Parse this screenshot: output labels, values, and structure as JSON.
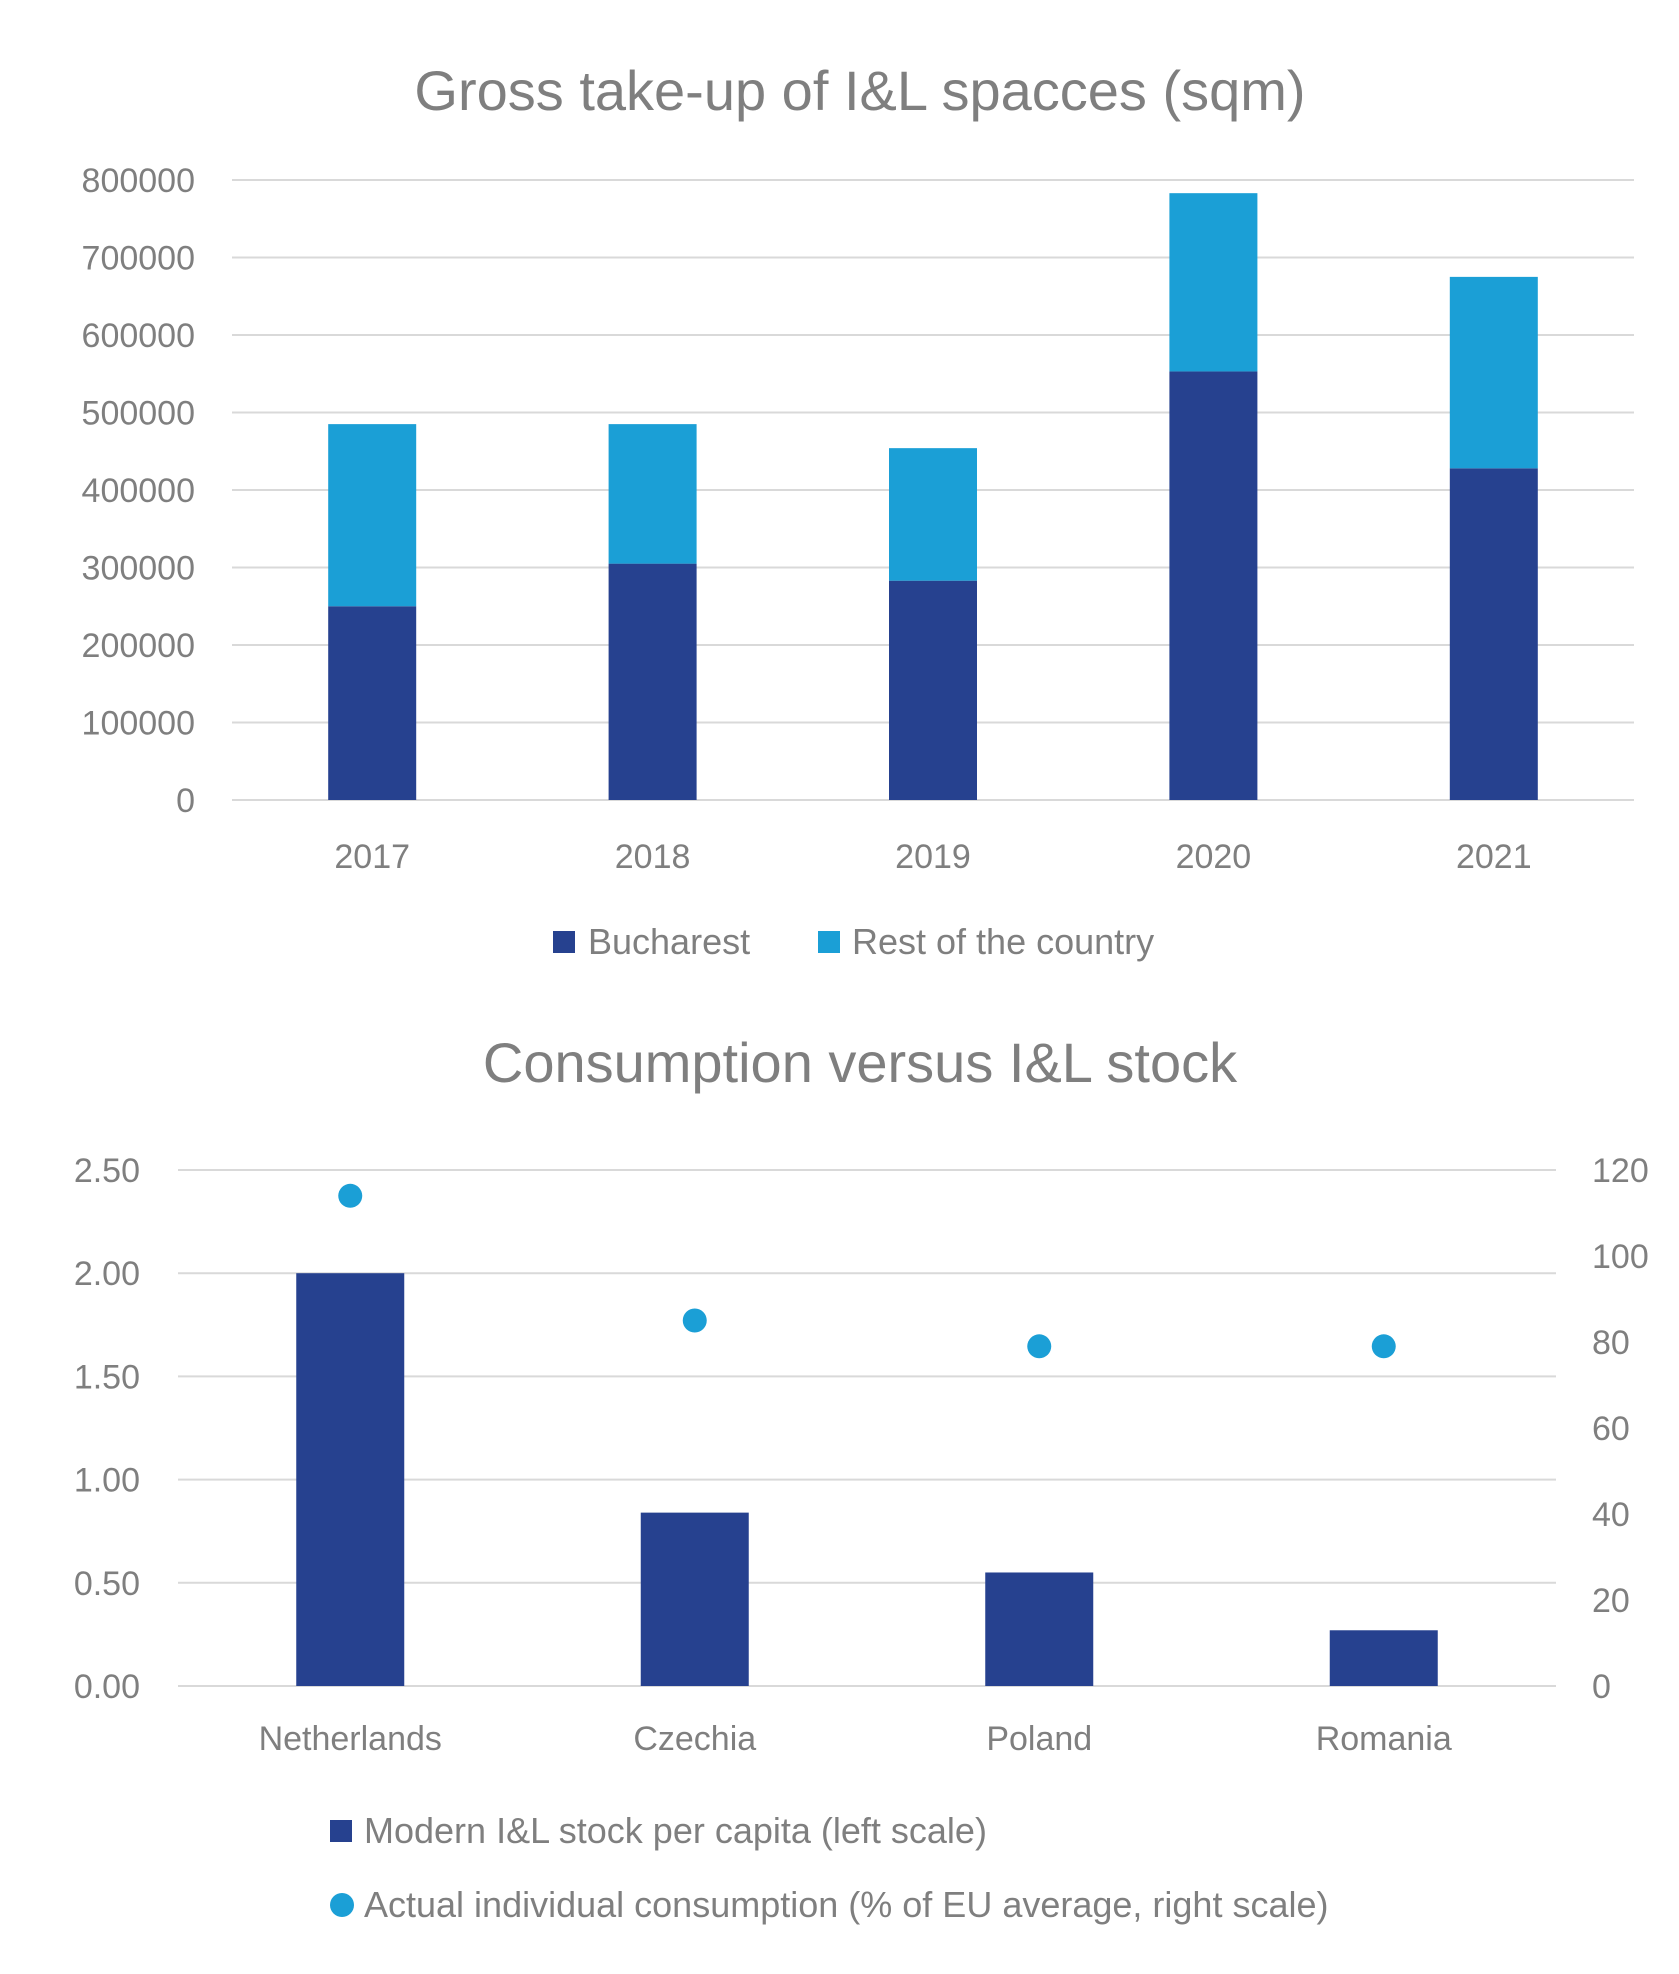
{
  "colors": {
    "dark_blue": "#26418f",
    "light_blue": "#1b9fd6",
    "text": "#7f7f7f",
    "grid": "#d9d9d9"
  },
  "chart_data": [
    {
      "type": "bar",
      "stacked": true,
      "title": "Gross take-up of I&L spacces (sqm)",
      "categories": [
        "2017",
        "2018",
        "2019",
        "2020",
        "2021"
      ],
      "series": [
        {
          "name": "Bucharest",
          "values": [
            250000,
            305000,
            283000,
            553000,
            428000
          ]
        },
        {
          "name": "Rest of the country",
          "values": [
            235000,
            180000,
            171000,
            230000,
            247000
          ]
        }
      ],
      "ylim": [
        0,
        800000
      ],
      "yticks": [
        "0",
        "100000",
        "200000",
        "300000",
        "400000",
        "500000",
        "600000",
        "700000",
        "800000"
      ],
      "grid": true,
      "legend": "bottom"
    },
    {
      "type": "bar",
      "title": "Consumption versus I&L stock",
      "categories": [
        "Netherlands",
        "Czechia",
        "Poland",
        "Romania"
      ],
      "series": [
        {
          "name": "Modern I&L stock per capita (left scale)",
          "kind": "bar",
          "axis": "left",
          "values": [
            2.0,
            0.84,
            0.55,
            0.27
          ]
        },
        {
          "name": "Actual individual consumption (% of EU average, right scale)",
          "kind": "scatter",
          "axis": "right",
          "values": [
            114,
            85,
            79,
            79
          ]
        }
      ],
      "ylim_left": [
        0,
        2.5
      ],
      "ylim_right": [
        0,
        120
      ],
      "yticks_left": [
        "0.00",
        "0.50",
        "1.00",
        "1.50",
        "2.00",
        "2.50"
      ],
      "yticks_right": [
        "0",
        "20",
        "40",
        "60",
        "80",
        "100",
        "120"
      ],
      "grid": true,
      "legend": "bottom"
    }
  ]
}
